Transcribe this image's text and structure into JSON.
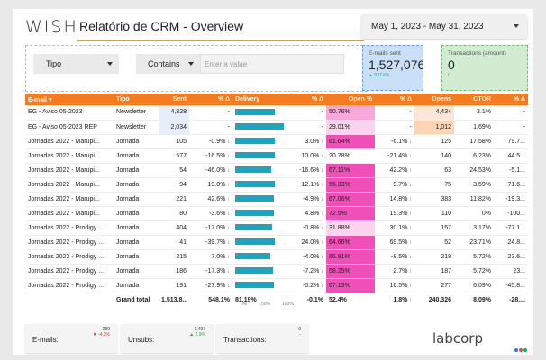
{
  "header": {
    "logo": "WISH",
    "title": "Relatório de CRM - Overview",
    "date_range": "May 1, 2023 - May 31, 2023"
  },
  "filters": {
    "tipo_label": "Tipo",
    "operator_label": "Contains",
    "value_placeholder": "Enter a value"
  },
  "scorecards": {
    "emails": {
      "label": "E-mails sent",
      "value": "1,527,076",
      "delta": "▲ 537.6%"
    },
    "transactions": {
      "label": "Transactions (amount)",
      "value": "0",
      "delta": "0"
    }
  },
  "table": {
    "headers": [
      "E-mail ▾",
      "Tipo",
      "Sent",
      "% Δ",
      "Delivery",
      "% Δ",
      "Open %",
      "% Δ",
      "Opens",
      "CTOR",
      "% Δ"
    ],
    "rows": [
      {
        "email": "EG - Aviso 05-2023",
        "tipo": "Newsletter",
        "sent": "4,328",
        "sent_d": "-",
        "sent_dir": "",
        "deliv": 0.81,
        "deliv_d": "-",
        "deliv_dir": "",
        "open": "50.76%",
        "open_d": "-",
        "open_dir": "",
        "opens": "4,434",
        "ctor": "3.1%",
        "ctor_d": "-",
        "ctor_dir": "",
        "open_hl": 2,
        "opens_hl": 1,
        "sent_hl": true
      },
      {
        "email": "EG - Aviso 05-2023 REP",
        "tipo": "Newsletter",
        "sent": "2,034",
        "sent_d": "-",
        "sent_dir": "",
        "deliv": 1.0,
        "deliv_d": "-",
        "deliv_dir": "",
        "open": "29.01%",
        "open_d": "-",
        "open_dir": "",
        "opens": "1,012",
        "ctor": "1.69%",
        "ctor_d": "-",
        "ctor_dir": "",
        "open_hl": 1,
        "opens_hl": 2,
        "sent_hl": true
      },
      {
        "email": "Jornadas 2022 - Marupi...",
        "tipo": "Jornada",
        "sent": "105",
        "sent_d": "-0.9%",
        "sent_dir": "dn",
        "deliv": 0.81,
        "deliv_d": "3.0%",
        "deliv_dir": "up",
        "open": "61.64%",
        "open_d": "-6.1%",
        "open_dir": "dn",
        "opens": "125",
        "ctor": "17.58%",
        "ctor_d": "79.7...",
        "ctor_dir": "",
        "open_hl": 3,
        "opens_hl": 0,
        "sent_hl": false
      },
      {
        "email": "Jornadas 2022 - Marupi...",
        "tipo": "Jornada",
        "sent": "577",
        "sent_d": "-16.5%",
        "sent_dir": "dn",
        "deliv": 0.81,
        "deliv_d": "10.0%",
        "deliv_dir": "up",
        "open": "20.78%",
        "open_d": "-21.4%",
        "open_dir": "dn",
        "opens": "140",
        "ctor": "6.23%",
        "ctor_d": "44.5...",
        "ctor_dir": "",
        "open_hl": 0,
        "opens_hl": 0,
        "sent_hl": false
      },
      {
        "email": "Jornadas 2022 - Marupi...",
        "tipo": "Jornada",
        "sent": "54",
        "sent_d": "-46.0%",
        "sent_dir": "dn",
        "deliv": 0.74,
        "deliv_d": "-16.6%",
        "deliv_dir": "dn",
        "open": "67.11%",
        "open_d": "42.2%",
        "open_dir": "up",
        "opens": "63",
        "ctor": "24.53%",
        "ctor_d": "-5.1...",
        "ctor_dir": "",
        "open_hl": 3,
        "opens_hl": 0,
        "sent_hl": false
      },
      {
        "email": "Jornadas 2022 - Marupi...",
        "tipo": "Jornada",
        "sent": "94",
        "sent_d": "19.0%",
        "sent_dir": "up",
        "deliv": 0.81,
        "deliv_d": "12.1%",
        "deliv_dir": "up",
        "open": "56.33%",
        "open_d": "-9.7%",
        "open_dir": "dn",
        "opens": "75",
        "ctor": "3.59%",
        "ctor_d": "-71.6...",
        "ctor_dir": "",
        "open_hl": 3,
        "opens_hl": 0,
        "sent_hl": false
      },
      {
        "email": "Jornadas 2022 - Marupi...",
        "tipo": "Jornada",
        "sent": "221",
        "sent_d": "42.6%",
        "sent_dir": "up",
        "deliv": 0.79,
        "deliv_d": "-4.9%",
        "deliv_dir": "dn",
        "open": "67.06%",
        "open_d": "14.8%",
        "open_dir": "up",
        "opens": "383",
        "ctor": "11.82%",
        "ctor_d": "-19.3...",
        "ctor_dir": "",
        "open_hl": 3,
        "opens_hl": 0,
        "sent_hl": false
      },
      {
        "email": "Jornadas 2022 - Marupi...",
        "tipo": "Jornada",
        "sent": "80",
        "sent_d": "-3.6%",
        "sent_dir": "dn",
        "deliv": 0.8,
        "deliv_d": "4.8%",
        "deliv_dir": "up",
        "open": "72.5%",
        "open_d": "19.3%",
        "open_dir": "up",
        "opens": "110",
        "ctor": "0%",
        "ctor_d": "-100...",
        "ctor_dir": "",
        "open_hl": 3,
        "opens_hl": 0,
        "sent_hl": false
      },
      {
        "email": "Jornadas 2022 - Prodigy ...",
        "tipo": "Jornada",
        "sent": "404",
        "sent_d": "-17.0%",
        "sent_dir": "dn",
        "deliv": 0.76,
        "deliv_d": "-0.8%",
        "deliv_dir": "dn",
        "open": "31.88%",
        "open_d": "30.1%",
        "open_dir": "up",
        "opens": "157",
        "ctor": "3.17%",
        "ctor_d": "-77.1...",
        "ctor_dir": "",
        "open_hl": 1,
        "opens_hl": 0,
        "sent_hl": false
      },
      {
        "email": "Jornadas 2022 - Prodigy ...",
        "tipo": "Jornada",
        "sent": "41",
        "sent_d": "-39.7%",
        "sent_dir": "dn",
        "deliv": 0.81,
        "deliv_d": "24.0%",
        "deliv_dir": "up",
        "open": "64.66%",
        "open_d": "69.5%",
        "open_dir": "up",
        "opens": "52",
        "ctor": "23.71%",
        "ctor_d": "24.8...",
        "ctor_dir": "",
        "open_hl": 3,
        "opens_hl": 0,
        "sent_hl": false
      },
      {
        "email": "Jornadas 2022 - Prodigy ...",
        "tipo": "Jornada",
        "sent": "215",
        "sent_d": "7.0%",
        "sent_dir": "up",
        "deliv": 0.72,
        "deliv_d": "-4.0%",
        "deliv_dir": "dn",
        "open": "56.81%",
        "open_d": "-8.5%",
        "open_dir": "dn",
        "opens": "219",
        "ctor": "5.72%",
        "ctor_d": "23.6...",
        "ctor_dir": "",
        "open_hl": 3,
        "opens_hl": 0,
        "sent_hl": false
      },
      {
        "email": "Jornadas 2022 - Prodigy ...",
        "tipo": "Jornada",
        "sent": "186",
        "sent_d": "-17.3%",
        "sent_dir": "dn",
        "deliv": 0.78,
        "deliv_d": "-7.2%",
        "deliv_dir": "dn",
        "open": "58.25%",
        "open_d": "2.7%",
        "open_dir": "up",
        "opens": "187",
        "ctor": "5.72%",
        "ctor_d": "23...",
        "ctor_dir": "",
        "open_hl": 3,
        "opens_hl": 0,
        "sent_hl": false
      },
      {
        "email": "Jornadas 2022 - Prodigy ...",
        "tipo": "Jornada",
        "sent": "191",
        "sent_d": "-27.9%",
        "sent_dir": "dn",
        "deliv": 0.79,
        "deliv_d": "-0.2%",
        "deliv_dir": "dn",
        "open": "67.13%",
        "open_d": "16.5%",
        "open_dir": "up",
        "opens": "277",
        "ctor": "6.09%",
        "ctor_d": "-45.8...",
        "ctor_dir": "",
        "open_hl": 3,
        "opens_hl": 0,
        "sent_hl": false
      }
    ],
    "total": {
      "label": "Grand total",
      "sent": "1,513,8...",
      "sent_d": "548.1%",
      "deliv": "81.19%",
      "deliv_d": "-0.1%",
      "open": "52.4%",
      "open_d": "1.8%",
      "opens": "240,326",
      "ctor": "8.09%",
      "ctor_d": "-28...."
    },
    "axis_ticks": [
      "0%",
      "50%",
      "100%"
    ]
  },
  "mini_cards": [
    {
      "label": "E-mails:",
      "num": "230",
      "delta": "▼ -4.2%",
      "dir": "dn"
    },
    {
      "label": "Unsubs:",
      "num": "1,497",
      "delta": "▲ 2.9%",
      "dir": "up"
    },
    {
      "label": "Transactions:",
      "num": "0",
      "delta": "-",
      "dir": ""
    }
  ],
  "brand": {
    "footer_logo": "labcorp"
  },
  "colors": {
    "header_orange": "#f47b20",
    "bar_teal": "#17a8bf",
    "pink_strong": "#f04fb8",
    "pink_light": "#fbd3ec",
    "peach": "#fde0cf"
  }
}
